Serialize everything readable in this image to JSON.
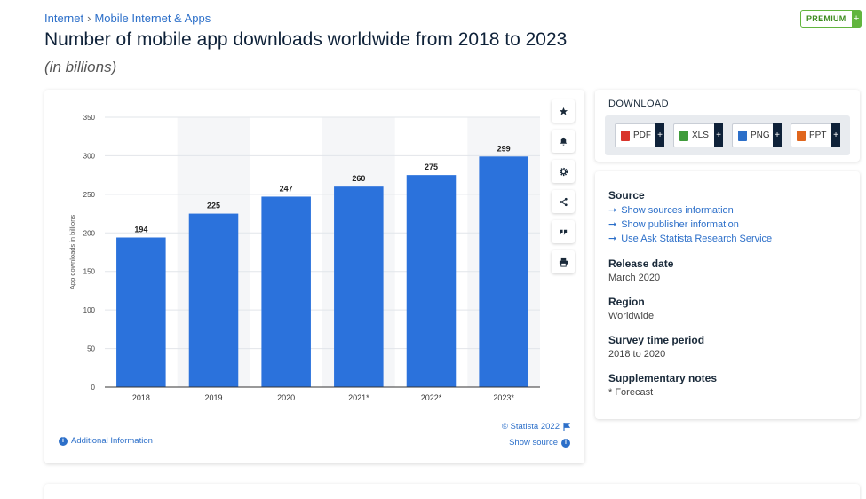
{
  "breadcrumb": {
    "item1": "Internet",
    "sep": "›",
    "item2": "Mobile Internet & Apps"
  },
  "premium": {
    "label": "PREMIUM",
    "plus": "+"
  },
  "page": {
    "title": "Number of mobile app downloads worldwide from 2018 to 2023",
    "subtitle": "(in billions)"
  },
  "chart_footer": {
    "additional_info": "Additional Information",
    "credit": "© Statista 2022",
    "show_source": "Show source"
  },
  "tools": [
    "star-icon",
    "bell-icon",
    "gear-icon",
    "share-icon",
    "quote-icon",
    "print-icon"
  ],
  "download": {
    "title": "DOWNLOAD",
    "buttons": [
      {
        "label": "PDF",
        "color": "#d9342b"
      },
      {
        "label": "XLS",
        "color": "#3f9b3b"
      },
      {
        "label": "PNG",
        "color": "#2c6fc9"
      },
      {
        "label": "PPT",
        "color": "#e0661d"
      }
    ],
    "plus": "+"
  },
  "info": {
    "source_heading": "Source",
    "source_links": [
      "Show sources information",
      "Show publisher information",
      "Use Ask Statista Research Service"
    ],
    "release_heading": "Release date",
    "release_value": "March 2020",
    "region_heading": "Region",
    "region_value": "Worldwide",
    "survey_heading": "Survey time period",
    "survey_value": "2018 to 2020",
    "notes_heading": "Supplementary notes",
    "notes_value": "* Forecast"
  },
  "colors": {
    "bar": "#2b72dc",
    "link": "#2c6fc9",
    "premium": "#62b53e"
  },
  "chart_data": {
    "type": "bar",
    "categories": [
      "2018",
      "2019",
      "2020",
      "2021*",
      "2022*",
      "2023*"
    ],
    "values": [
      194,
      225,
      247,
      260,
      275,
      299
    ],
    "ylabel": "App downloads in billions",
    "ylim": [
      0,
      350
    ],
    "yticks": [
      0,
      50,
      100,
      150,
      200,
      250,
      300,
      350
    ],
    "grid": true,
    "data_labels": true
  }
}
